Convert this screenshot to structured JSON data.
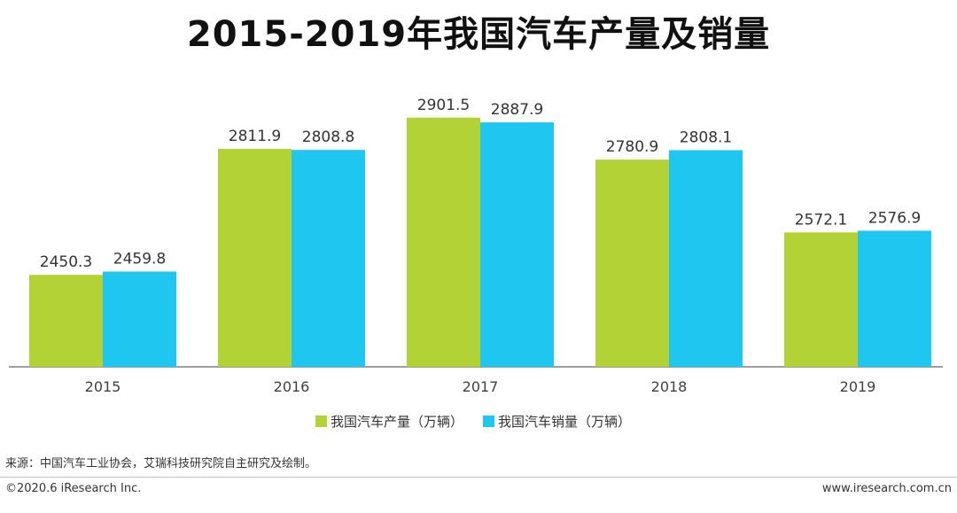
{
  "chart_data": {
    "type": "bar",
    "title": "2015-2019年我国汽车产量及销量",
    "categories": [
      "2015",
      "2016",
      "2017",
      "2018",
      "2019"
    ],
    "series": [
      {
        "name": "我国汽车产量（万辆）",
        "color": "#b2d235",
        "values": [
          2450.3,
          2811.9,
          2901.5,
          2780.9,
          2572.1
        ]
      },
      {
        "name": "我国汽车销量（万辆）",
        "color": "#1fc6f0",
        "values": [
          2459.8,
          2808.8,
          2887.9,
          2808.1,
          2576.9
        ]
      }
    ],
    "xlabel": "",
    "ylabel": "",
    "grid": false,
    "legend": "bottom-center"
  },
  "source": "来源：中国汽车工业协会，艾瑞科技研究院自主研究及绘制。",
  "footer": {
    "copyright": "©2020.6 iResearch Inc.",
    "website": "www.iresearch.com.cn"
  }
}
